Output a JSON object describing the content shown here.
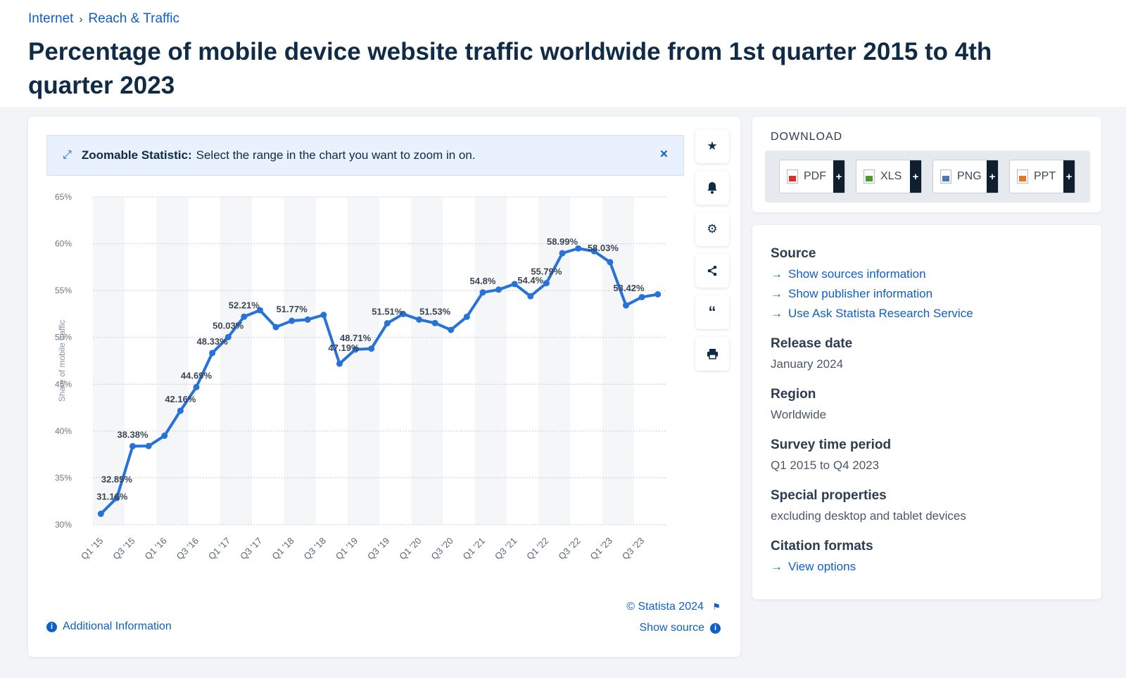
{
  "breadcrumb": {
    "item1": "Internet",
    "separator": "›",
    "item2": "Reach & Traffic"
  },
  "title": "Percentage of mobile device website traffic worldwide from 1st quarter 2015 to 4th quarter 2023",
  "zoom": {
    "label": "Zoomable Statistic:",
    "text": "Select the range in the chart you want to zoom in on.",
    "close": "×"
  },
  "tools": [
    "star-icon",
    "bell-icon",
    "gear-icon",
    "share-icon",
    "quote-icon",
    "print-icon"
  ],
  "chart_footer": {
    "copyright": "© Statista 2024",
    "additional_info": "Additional Information",
    "show_source": "Show source"
  },
  "download": {
    "title": "DOWNLOAD",
    "buttons": [
      {
        "label": "PDF",
        "color": "#d9302c"
      },
      {
        "label": "XLS",
        "color": "#4c9a2a"
      },
      {
        "label": "PNG",
        "color": "#4a7ab5"
      },
      {
        "label": "PPT",
        "color": "#e2762a"
      }
    ],
    "plus": "+"
  },
  "meta": {
    "source_heading": "Source",
    "source_links": [
      "Show sources information",
      "Show publisher information",
      "Use Ask Statista Research Service"
    ],
    "release_heading": "Release date",
    "release_value": "January 2024",
    "region_heading": "Region",
    "region_value": "Worldwide",
    "period_heading": "Survey time period",
    "period_value": "Q1 2015 to Q4 2023",
    "special_heading": "Special properties",
    "special_value": "excluding desktop and tablet devices",
    "citation_heading": "Citation formats",
    "citation_link": "View options"
  },
  "chart_data": {
    "type": "line",
    "ylabel": "Share of mobile traffic",
    "ylim": [
      30,
      65
    ],
    "yticks": [
      "30%",
      "35%",
      "40%",
      "45%",
      "50%",
      "55%",
      "60%",
      "65%"
    ],
    "x": [
      "Q1 '15",
      "Q2 '15",
      "Q3 '15",
      "Q4 '15",
      "Q1 '16",
      "Q2 '16",
      "Q3 '16",
      "Q4 '16",
      "Q1 '17",
      "Q2 '17",
      "Q3 '17",
      "Q4 '17",
      "Q1 '18",
      "Q2 '18",
      "Q3 '18",
      "Q4 '18",
      "Q1 '19",
      "Q2 '19",
      "Q3 '19",
      "Q4 '19",
      "Q1 '20",
      "Q2 '20",
      "Q3 '20",
      "Q4 '20",
      "Q1 '21",
      "Q2 '21",
      "Q3 '21",
      "Q4 '21",
      "Q1 '22",
      "Q2 '22",
      "Q3 '22",
      "Q4 '22",
      "Q1 '23",
      "Q2 '23",
      "Q3 '23",
      "Q4 '23"
    ],
    "xtick_labels": [
      "Q1 '15",
      "Q3 '15",
      "Q1 '16",
      "Q3 '16",
      "Q1 '17",
      "Q3 '17",
      "Q1 '18",
      "Q3 '18",
      "Q1 '19",
      "Q3 '19",
      "Q1 '20",
      "Q3 '20",
      "Q1 '21",
      "Q3 '21",
      "Q1 '22",
      "Q3 '22",
      "Q1 '23",
      "Q3 '23"
    ],
    "values": [
      31.16,
      32.85,
      38.38,
      38.4,
      39.5,
      42.16,
      44.69,
      48.33,
      50.03,
      52.21,
      52.9,
      51.1,
      51.77,
      51.9,
      52.4,
      47.19,
      48.71,
      48.8,
      51.51,
      52.5,
      51.9,
      51.53,
      50.8,
      52.2,
      54.8,
      55.1,
      55.7,
      54.4,
      55.79,
      58.99,
      59.5,
      59.2,
      58.03,
      53.42,
      54.3,
      54.6
    ],
    "data_labels": [
      {
        "i": 0,
        "text": "31.16%"
      },
      {
        "i": 1,
        "text": "32.85%"
      },
      {
        "i": 2,
        "text": "38.38%"
      },
      {
        "i": 5,
        "text": "42.16%"
      },
      {
        "i": 6,
        "text": "44.69%"
      },
      {
        "i": 7,
        "text": "48.33%"
      },
      {
        "i": 8,
        "text": "50.03%"
      },
      {
        "i": 9,
        "text": "52.21%"
      },
      {
        "i": 12,
        "text": "51.77%"
      },
      {
        "i": 15,
        "text": "47.19%"
      },
      {
        "i": 16,
        "text": "48.71%"
      },
      {
        "i": 18,
        "text": "51.51%"
      },
      {
        "i": 21,
        "text": "51.53%"
      },
      {
        "i": 24,
        "text": "54.8%"
      },
      {
        "i": 27,
        "text": "54.4%"
      },
      {
        "i": 28,
        "text": "55.79%"
      },
      {
        "i": 29,
        "text": "58.99%"
      },
      {
        "i": 32,
        "text": "58.03%"
      },
      {
        "i": 33,
        "text": "53.42%"
      }
    ],
    "color": "#2672d9",
    "grid": true,
    "legend": "none"
  }
}
